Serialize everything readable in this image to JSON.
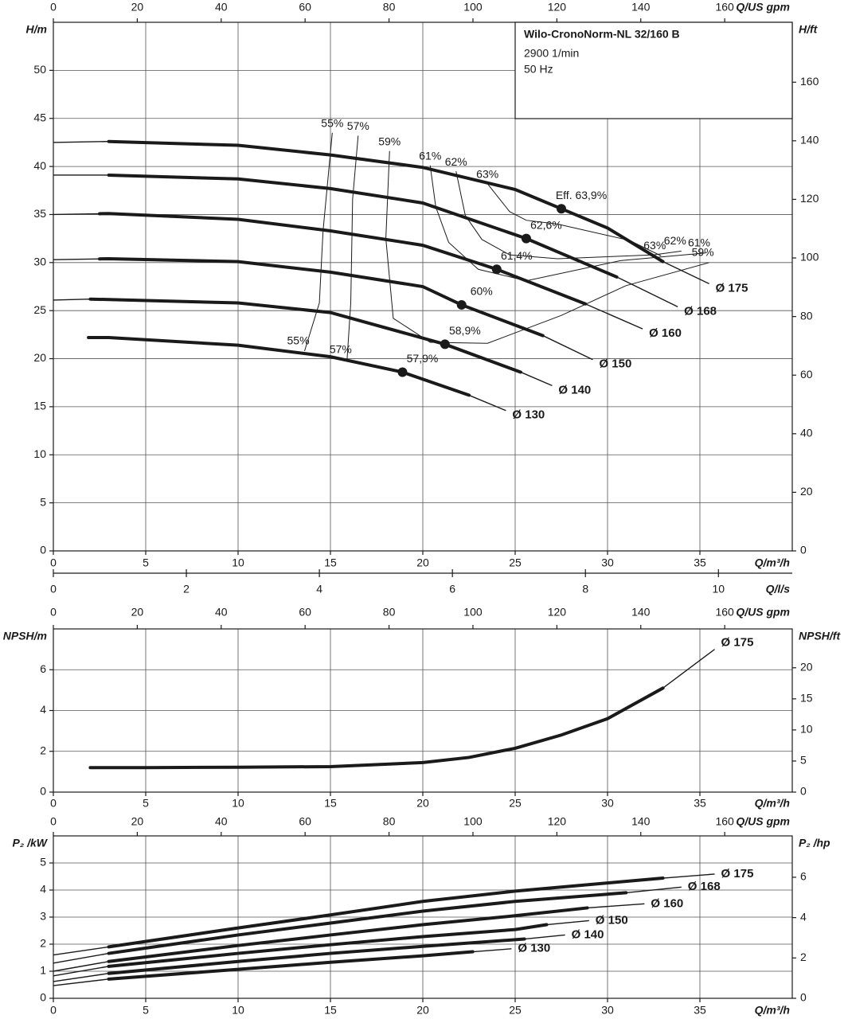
{
  "chart_data": [
    {
      "type": "line",
      "info": {
        "title": "Wilo-CronoNorm-NL 32/160 B",
        "lines": [
          "2900 1/min",
          "50 Hz"
        ]
      },
      "ylabel": "H/m",
      "y2label": "H/ft",
      "xlabel": "Q/m³/h",
      "x2label": "Q/US gpm",
      "x3label": "Q/l/s",
      "xlim": [
        0,
        40
      ],
      "xticks": [
        0,
        5,
        10,
        15,
        20,
        25,
        30,
        35
      ],
      "x2lim": [
        0,
        176.1
      ],
      "x2ticks": [
        0,
        20,
        40,
        60,
        80,
        100,
        120,
        140,
        160
      ],
      "x3lim": [
        0,
        11.11
      ],
      "x3ticks": [
        0,
        2,
        4,
        6,
        8,
        10
      ],
      "ylim": [
        0,
        55
      ],
      "yticks": [
        0,
        5,
        10,
        15,
        20,
        25,
        30,
        35,
        40,
        45,
        50
      ],
      "y2lim": [
        0,
        180.45
      ],
      "y2ticks": [
        0,
        20,
        40,
        60,
        80,
        100,
        120,
        140,
        160
      ],
      "grid": true,
      "series": [
        {
          "name": "Ø 175",
          "color": "#1a1a1a",
          "thick": [
            3,
            33
          ],
          "x": [
            0,
            3,
            10,
            15,
            20,
            25,
            27.5,
            30,
            33,
            35.5
          ],
          "values": [
            42.5,
            42.6,
            42.2,
            41.2,
            39.9,
            37.6,
            35.6,
            33.6,
            30.1,
            27.8
          ],
          "bep": {
            "x": 27.5,
            "value": 35.6,
            "label": "Eff.  63,9%"
          }
        },
        {
          "name": "Ø 168",
          "color": "#1a1a1a",
          "thick": [
            3,
            30.5
          ],
          "x": [
            0,
            3,
            10,
            15,
            20,
            25.6,
            30.5,
            33.8
          ],
          "values": [
            39.1,
            39.1,
            38.7,
            37.7,
            36.2,
            32.5,
            28.5,
            25.4
          ],
          "bep": {
            "x": 25.6,
            "value": 32.5,
            "label": "62,6%"
          }
        },
        {
          "name": "Ø 160",
          "color": "#1a1a1a",
          "thick": [
            2.5,
            28.8
          ],
          "x": [
            0,
            3,
            10,
            15,
            20,
            24,
            28.8,
            31.9
          ],
          "values": [
            35,
            35.1,
            34.5,
            33.3,
            31.8,
            29.3,
            25.7,
            23.1
          ],
          "bep": {
            "x": 24,
            "value": 29.3,
            "label": "61,4%"
          }
        },
        {
          "name": "Ø 150",
          "color": "#1a1a1a",
          "thick": [
            2.5,
            26.5
          ],
          "x": [
            0,
            3,
            10,
            15,
            20,
            22.1,
            26.5,
            29.2
          ],
          "values": [
            30.3,
            30.4,
            30.1,
            29,
            27.5,
            25.6,
            22.4,
            19.9
          ],
          "bep": {
            "x": 22.1,
            "value": 25.6,
            "label": "60%"
          }
        },
        {
          "name": "Ø 140",
          "color": "#1a1a1a",
          "thick": [
            2,
            25.3
          ],
          "x": [
            0,
            2,
            10,
            15,
            21.2,
            25.3,
            27
          ],
          "values": [
            26.1,
            26.2,
            25.8,
            24.8,
            21.5,
            18.6,
            17.2
          ],
          "bep": {
            "x": 21.2,
            "value": 21.5,
            "label": "58,9%"
          }
        },
        {
          "name": "Ø 130",
          "color": "#1a1a1a",
          "thick": [
            1.9,
            22.5
          ],
          "x": [
            1.9,
            3,
            10,
            15,
            18.9,
            22.5,
            24.5
          ],
          "values": [
            22.2,
            22.2,
            21.4,
            20.2,
            18.6,
            16.2,
            14.6
          ],
          "bep": {
            "x": 18.9,
            "value": 18.6,
            "label": "57,9%"
          }
        }
      ],
      "contours": [
        {
          "label": "55%",
          "x": [
            15.1,
            14.6,
            14.4,
            13.6
          ],
          "values": [
            43.5,
            33.3,
            25.8,
            20.8
          ]
        },
        {
          "label": "57%",
          "x": [
            16.5,
            16.2,
            16.1,
            15.9
          ],
          "values": [
            43.2,
            36.6,
            25.8,
            19.9
          ]
        },
        {
          "label": "59%",
          "x": [
            18.2,
            18,
            18.4,
            20.4,
            23.5,
            27.5,
            31,
            35.5
          ],
          "values": [
            41.6,
            32.5,
            24.2,
            21.7,
            21.6,
            24.5,
            27.6,
            30
          ]
        },
        {
          "label": "61%",
          "x": [
            20.4,
            20.7,
            21.4,
            23,
            25.6,
            30.7,
            35.3
          ],
          "values": [
            40.1,
            35.8,
            32.1,
            29.3,
            28.1,
            30.2,
            31
          ]
        },
        {
          "label": "62%",
          "x": [
            21.8,
            22.3,
            23.2,
            24.7,
            27.3,
            32.5,
            34
          ],
          "values": [
            39.5,
            34.9,
            32.4,
            30.8,
            30.4,
            30.8,
            31.2
          ]
        },
        {
          "label": "63%",
          "x": [
            23.5,
            24.7,
            25.6,
            27.3,
            31.2,
            32.9
          ],
          "values": [
            38.2,
            35.3,
            34.4,
            34,
            32.3,
            30.7
          ]
        }
      ]
    },
    {
      "type": "line",
      "ylabel": "NPSH/m",
      "y2label": "NPSH/ft",
      "xlabel": "Q/m³/h",
      "x2label": "Q/US gpm",
      "xlim": [
        0,
        40
      ],
      "xticks": [
        0,
        5,
        10,
        15,
        20,
        25,
        30,
        35
      ],
      "x2lim": [
        0,
        176.1
      ],
      "x2ticks": [
        0,
        20,
        40,
        60,
        80,
        100,
        120,
        140,
        160
      ],
      "ylim": [
        0,
        8
      ],
      "yticks": [
        0,
        2,
        4,
        6
      ],
      "y2lim": [
        0,
        26.25
      ],
      "y2ticks": [
        0,
        5,
        10,
        15,
        20
      ],
      "grid": true,
      "series": [
        {
          "name": "Ø 175",
          "color": "#1a1a1a",
          "thick": [
            2,
            33
          ],
          "x": [
            2,
            5,
            10,
            15,
            20,
            22.5,
            25,
            27.5,
            30,
            33,
            35.8
          ],
          "values": [
            1.2,
            1.2,
            1.22,
            1.25,
            1.45,
            1.7,
            2.15,
            2.8,
            3.6,
            5.1,
            7.0
          ]
        }
      ]
    },
    {
      "type": "line",
      "ylabel": "P₂ /kW",
      "y2label": "P₂ /hp",
      "xlabel": "Q/m³/h",
      "x2label": "Q/US gpm",
      "xlim": [
        0,
        40
      ],
      "xticks": [
        0,
        5,
        10,
        15,
        20,
        25,
        30,
        35
      ],
      "x2lim": [
        0,
        176.1
      ],
      "x2ticks": [
        0,
        20,
        40,
        60,
        80,
        100,
        120,
        140,
        160
      ],
      "ylim": [
        0,
        6
      ],
      "yticks": [
        0,
        1,
        2,
        3,
        4,
        5
      ],
      "y2lim": [
        0,
        8.05
      ],
      "y2ticks": [
        0,
        2,
        4,
        6
      ],
      "grid": true,
      "series": [
        {
          "name": "Ø 175",
          "color": "#1a1a1a",
          "thick": [
            3,
            33
          ],
          "x": [
            0,
            3,
            10,
            15,
            20,
            25,
            30,
            33,
            35.8
          ],
          "values": [
            1.6,
            1.9,
            2.6,
            3.08,
            3.58,
            3.96,
            4.26,
            4.44,
            4.59
          ]
        },
        {
          "name": "Ø 168",
          "color": "#1a1a1a",
          "thick": [
            3,
            31
          ],
          "x": [
            0,
            3,
            10,
            15,
            20,
            25,
            31,
            34
          ],
          "values": [
            1.3,
            1.66,
            2.34,
            2.78,
            3.22,
            3.58,
            3.9,
            4.11
          ]
        },
        {
          "name": "Ø 160",
          "color": "#1a1a1a",
          "thick": [
            3,
            28.9
          ],
          "x": [
            0,
            3,
            10,
            15,
            20,
            25,
            28.9,
            32
          ],
          "values": [
            1.0,
            1.36,
            1.95,
            2.34,
            2.72,
            3.05,
            3.34,
            3.49
          ]
        },
        {
          "name": "Ø 150",
          "color": "#1a1a1a",
          "thick": [
            3,
            26.7
          ],
          "x": [
            0,
            3,
            10,
            15,
            20,
            25,
            26.7,
            29
          ],
          "values": [
            0.83,
            1.18,
            1.66,
            1.98,
            2.28,
            2.54,
            2.72,
            2.87
          ]
        },
        {
          "name": "Ø 140",
          "color": "#1a1a1a",
          "thick": [
            3,
            25.5
          ],
          "x": [
            0,
            3,
            10,
            15,
            20,
            25.5,
            27.7
          ],
          "values": [
            0.62,
            0.92,
            1.36,
            1.66,
            1.92,
            2.19,
            2.34
          ]
        },
        {
          "name": "Ø 130",
          "color": "#1a1a1a",
          "thick": [
            3,
            22.7
          ],
          "x": [
            0,
            3,
            10,
            15,
            20,
            22.7,
            24.8
          ],
          "values": [
            0.47,
            0.71,
            1.07,
            1.33,
            1.57,
            1.72,
            1.83
          ]
        }
      ]
    }
  ]
}
